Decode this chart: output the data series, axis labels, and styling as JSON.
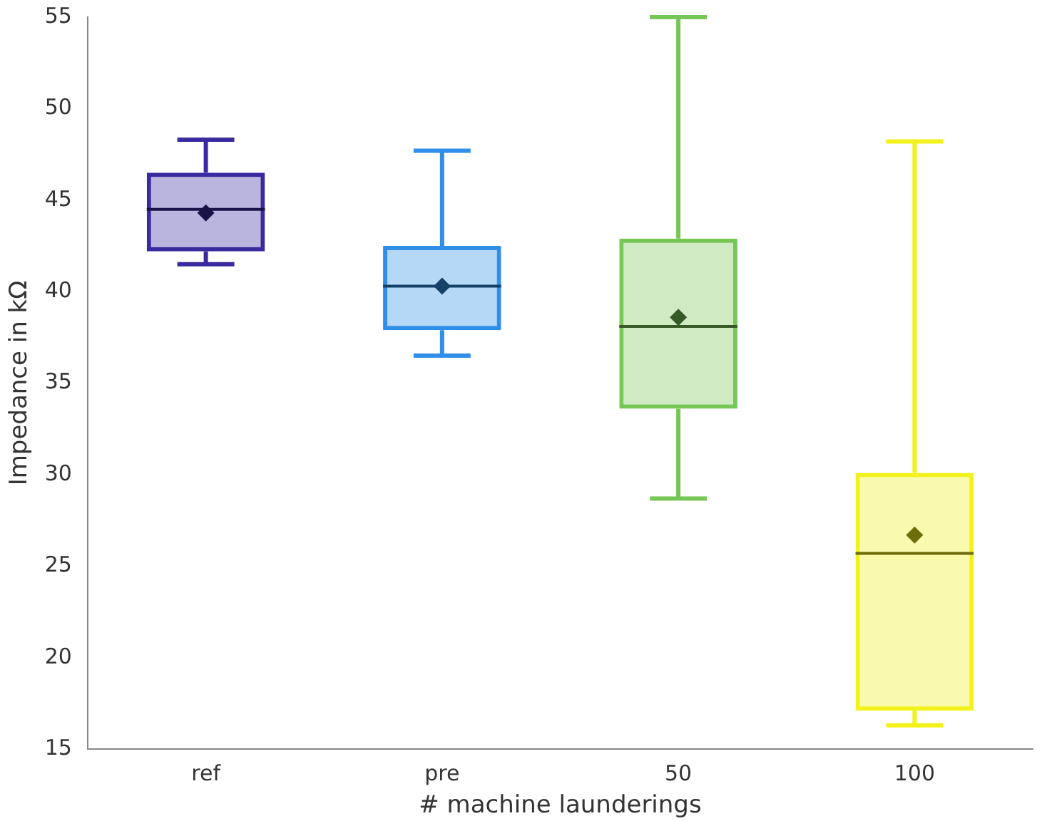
{
  "chart_data": {
    "type": "box",
    "xlabel": "# machine launderings",
    "ylabel": "Impedance in kΩ",
    "categories": [
      "ref",
      "pre",
      "50",
      "100"
    ],
    "boxes": [
      {
        "low": 41.5,
        "q1": 42.2,
        "median": 44.5,
        "q3": 46.5,
        "high": 48.3,
        "mean": 44.3
      },
      {
        "low": 36.5,
        "q1": 37.9,
        "median": 40.3,
        "q3": 42.5,
        "high": 47.7,
        "mean": 40.3
      },
      {
        "low": 28.7,
        "q1": 33.6,
        "median": 38.1,
        "q3": 42.9,
        "high": 55,
        "mean": 38.6
      },
      {
        "low": 16.3,
        "q1": 17.1,
        "median": 25.7,
        "q3": 30.1,
        "high": 48.2,
        "mean": 26.7
      }
    ],
    "colors": [
      "#3a2aa0",
      "#2f8fe8",
      "#77c756",
      "#f2f21a"
    ],
    "ylim": [
      15,
      55
    ],
    "yticks": [
      15,
      20,
      25,
      30,
      35,
      40,
      45,
      50,
      55
    ],
    "grid": false,
    "legend": false
  }
}
